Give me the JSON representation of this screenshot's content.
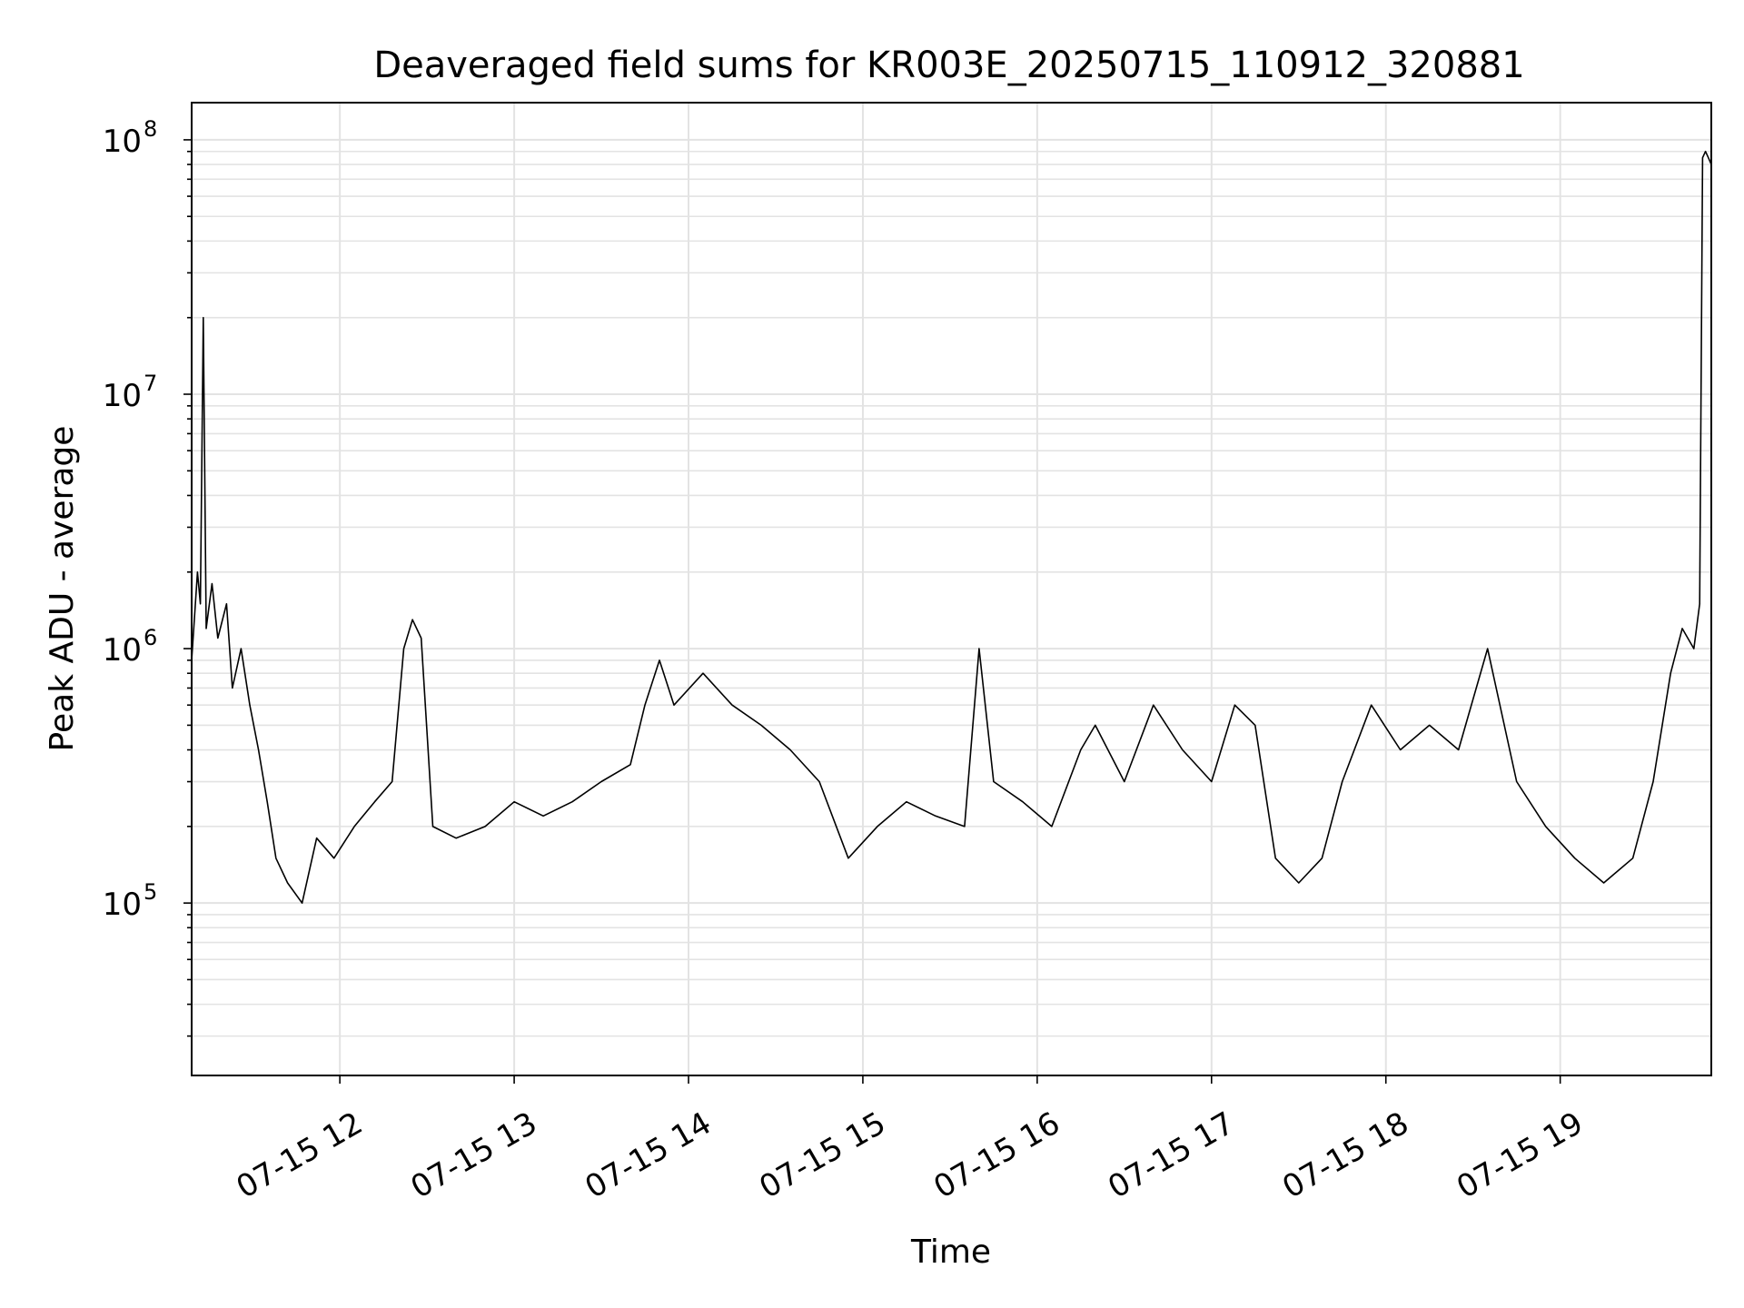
{
  "chart_data": {
    "type": "line",
    "title": "Deaveraged field sums for KR003E_20250715_110912_320881",
    "xlabel": "Time",
    "ylabel": "Peak ADU - average",
    "xlim": [
      "2025-07-15T11:09",
      "2025-07-15T19:52"
    ],
    "ylim": [
      21000,
      140000000
    ],
    "yscale": "log",
    "grid": true,
    "legend": "none",
    "line_color": "#000000",
    "x_ticks": [
      {
        "value": "2025-07-15T12:00",
        "label": "07-15 12"
      },
      {
        "value": "2025-07-15T13:00",
        "label": "07-15 13"
      },
      {
        "value": "2025-07-15T14:00",
        "label": "07-15 14"
      },
      {
        "value": "2025-07-15T15:00",
        "label": "07-15 15"
      },
      {
        "value": "2025-07-15T16:00",
        "label": "07-15 16"
      },
      {
        "value": "2025-07-15T17:00",
        "label": "07-15 17"
      },
      {
        "value": "2025-07-15T18:00",
        "label": "07-15 18"
      },
      {
        "value": "2025-07-15T19:00",
        "label": "07-15 19"
      }
    ],
    "y_ticks": [
      {
        "value": 100000,
        "base": "10",
        "exp": "5"
      },
      {
        "value": 1000000,
        "base": "10",
        "exp": "6"
      },
      {
        "value": 10000000,
        "base": "10",
        "exp": "7"
      },
      {
        "value": 100000000,
        "base": "10",
        "exp": "8"
      }
    ],
    "series": [
      {
        "points": [
          [
            "2025-07-15T11:09",
            900000
          ],
          [
            "2025-07-15T11:11",
            2000000
          ],
          [
            "2025-07-15T11:12",
            1500000
          ],
          [
            "2025-07-15T11:13",
            20000000
          ],
          [
            "2025-07-15T11:14",
            1200000
          ],
          [
            "2025-07-15T11:16",
            1800000
          ],
          [
            "2025-07-15T11:18",
            1100000
          ],
          [
            "2025-07-15T11:21",
            1500000
          ],
          [
            "2025-07-15T11:23",
            700000
          ],
          [
            "2025-07-15T11:26",
            1000000
          ],
          [
            "2025-07-15T11:29",
            600000
          ],
          [
            "2025-07-15T11:32",
            400000
          ],
          [
            "2025-07-15T11:35",
            250000
          ],
          [
            "2025-07-15T11:38",
            150000
          ],
          [
            "2025-07-15T11:42",
            120000
          ],
          [
            "2025-07-15T11:47",
            100000
          ],
          [
            "2025-07-15T11:52",
            180000
          ],
          [
            "2025-07-15T11:58",
            150000
          ],
          [
            "2025-07-15T12:05",
            200000
          ],
          [
            "2025-07-15T12:12",
            250000
          ],
          [
            "2025-07-15T12:18",
            300000
          ],
          [
            "2025-07-15T12:22",
            1000000
          ],
          [
            "2025-07-15T12:25",
            1300000
          ],
          [
            "2025-07-15T12:28",
            1100000
          ],
          [
            "2025-07-15T12:32",
            200000
          ],
          [
            "2025-07-15T12:40",
            180000
          ],
          [
            "2025-07-15T12:50",
            200000
          ],
          [
            "2025-07-15T13:00",
            250000
          ],
          [
            "2025-07-15T13:10",
            220000
          ],
          [
            "2025-07-15T13:20",
            250000
          ],
          [
            "2025-07-15T13:30",
            300000
          ],
          [
            "2025-07-15T13:40",
            350000
          ],
          [
            "2025-07-15T13:45",
            600000
          ],
          [
            "2025-07-15T13:50",
            900000
          ],
          [
            "2025-07-15T13:55",
            600000
          ],
          [
            "2025-07-15T14:05",
            800000
          ],
          [
            "2025-07-15T14:15",
            600000
          ],
          [
            "2025-07-15T14:25",
            500000
          ],
          [
            "2025-07-15T14:35",
            400000
          ],
          [
            "2025-07-15T14:45",
            300000
          ],
          [
            "2025-07-15T14:55",
            150000
          ],
          [
            "2025-07-15T15:05",
            200000
          ],
          [
            "2025-07-15T15:15",
            250000
          ],
          [
            "2025-07-15T15:25",
            220000
          ],
          [
            "2025-07-15T15:35",
            200000
          ],
          [
            "2025-07-15T15:40",
            1000000
          ],
          [
            "2025-07-15T15:45",
            300000
          ],
          [
            "2025-07-15T15:55",
            250000
          ],
          [
            "2025-07-15T16:05",
            200000
          ],
          [
            "2025-07-15T16:15",
            400000
          ],
          [
            "2025-07-15T16:20",
            500000
          ],
          [
            "2025-07-15T16:30",
            300000
          ],
          [
            "2025-07-15T16:40",
            600000
          ],
          [
            "2025-07-15T16:50",
            400000
          ],
          [
            "2025-07-15T17:00",
            300000
          ],
          [
            "2025-07-15T17:08",
            600000
          ],
          [
            "2025-07-15T17:15",
            500000
          ],
          [
            "2025-07-15T17:22",
            150000
          ],
          [
            "2025-07-15T17:30",
            120000
          ],
          [
            "2025-07-15T17:38",
            150000
          ],
          [
            "2025-07-15T17:45",
            300000
          ],
          [
            "2025-07-15T17:55",
            600000
          ],
          [
            "2025-07-15T18:05",
            400000
          ],
          [
            "2025-07-15T18:15",
            500000
          ],
          [
            "2025-07-15T18:25",
            400000
          ],
          [
            "2025-07-15T18:35",
            1000000
          ],
          [
            "2025-07-15T18:45",
            300000
          ],
          [
            "2025-07-15T18:55",
            200000
          ],
          [
            "2025-07-15T19:05",
            150000
          ],
          [
            "2025-07-15T19:15",
            120000
          ],
          [
            "2025-07-15T19:25",
            150000
          ],
          [
            "2025-07-15T19:32",
            300000
          ],
          [
            "2025-07-15T19:38",
            800000
          ],
          [
            "2025-07-15T19:42",
            1200000
          ],
          [
            "2025-07-15T19:46",
            1000000
          ],
          [
            "2025-07-15T19:48",
            1500000
          ],
          [
            "2025-07-15T19:49",
            85000000
          ],
          [
            "2025-07-15T19:50",
            90000000
          ],
          [
            "2025-07-15T19:51",
            85000000
          ],
          [
            "2025-07-15T19:52",
            80000000
          ]
        ]
      }
    ]
  }
}
